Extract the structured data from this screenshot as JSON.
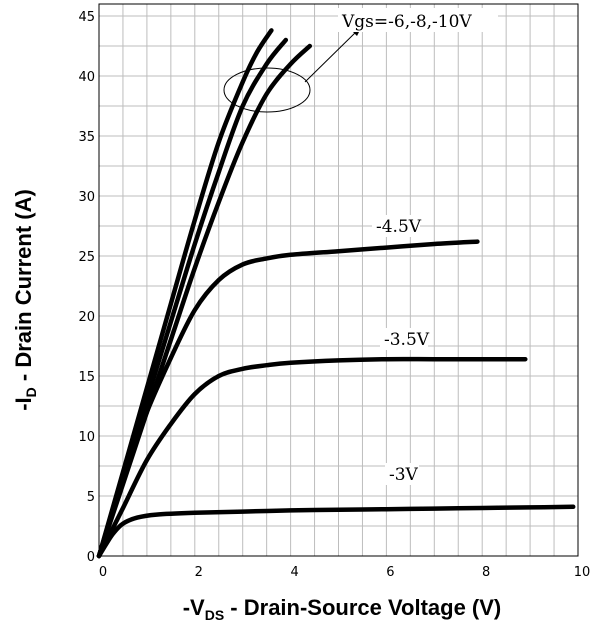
{
  "chart_data": {
    "type": "line",
    "xlabel": "-V_DS - Drain-Source Voltage (V)",
    "ylabel": "-I_D - Drain Current (A)",
    "xlim": [
      0,
      10
    ],
    "ylim": [
      0,
      46
    ],
    "xticks": [
      0,
      2,
      4,
      6,
      8,
      10
    ],
    "yticks": [
      0,
      5,
      10,
      15,
      20,
      25,
      30,
      35,
      40,
      45
    ],
    "grid": true,
    "annotations": [
      "Vgs=-6,-8,-10V",
      "-4.5V",
      "-3.5V",
      "-3V"
    ],
    "series": [
      {
        "name": "Vgs=-10V",
        "x": [
          0,
          0.5,
          1,
          1.5,
          2,
          2.5,
          3,
          3.3,
          3.6
        ],
        "y": [
          0,
          7,
          14,
          21,
          28,
          34.5,
          39.5,
          42,
          43.8
        ]
      },
      {
        "name": "Vgs=-8V",
        "x": [
          0,
          0.5,
          1,
          1.5,
          2,
          2.5,
          3,
          3.5,
          3.9
        ],
        "y": [
          0,
          6.5,
          13,
          19.5,
          26,
          32,
          37.5,
          41,
          43
        ]
      },
      {
        "name": "Vgs=-6V",
        "x": [
          0,
          0.5,
          1,
          1.5,
          2,
          2.5,
          3,
          3.5,
          4,
          4.4
        ],
        "y": [
          0,
          6,
          12,
          18,
          24,
          29.5,
          34.5,
          38.5,
          41,
          42.5
        ]
      },
      {
        "name": "-4.5V",
        "x": [
          0,
          0.5,
          1,
          1.5,
          2,
          2.5,
          3,
          3.5,
          4,
          5,
          6,
          7,
          7.9
        ],
        "y": [
          0,
          6.5,
          12,
          16.5,
          20.5,
          23,
          24.3,
          24.8,
          25.1,
          25.4,
          25.7,
          26,
          26.2
        ]
      },
      {
        "name": "-3.5V",
        "x": [
          0,
          0.5,
          1,
          1.5,
          2,
          2.5,
          3,
          3.5,
          4,
          5,
          6,
          7,
          8,
          8.9
        ],
        "y": [
          0,
          4,
          8,
          11,
          13.5,
          15,
          15.6,
          15.9,
          16.1,
          16.3,
          16.4,
          16.4,
          16.4,
          16.4
        ]
      },
      {
        "name": "-3V",
        "x": [
          0,
          0.15,
          0.3,
          0.5,
          0.8,
          1.2,
          2,
          3,
          4,
          5,
          6,
          7,
          8,
          9,
          9.9
        ],
        "y": [
          0,
          1,
          1.9,
          2.7,
          3.2,
          3.45,
          3.6,
          3.7,
          3.8,
          3.85,
          3.9,
          3.95,
          4.0,
          4.05,
          4.1
        ]
      }
    ]
  },
  "labels": {
    "annot_main": "Vgs=-6,-8,-10V",
    "annot_45": "-4.5V",
    "annot_35": "-3.5V",
    "annot_3": "-3V",
    "x_title_prefix": "-V",
    "x_title_sub": "DS",
    "x_title_rest": " - Drain-Source Voltage (V)",
    "y_title_prefix": "-I",
    "y_title_sub": "D",
    "y_title_rest": " - Drain Current (A)"
  }
}
